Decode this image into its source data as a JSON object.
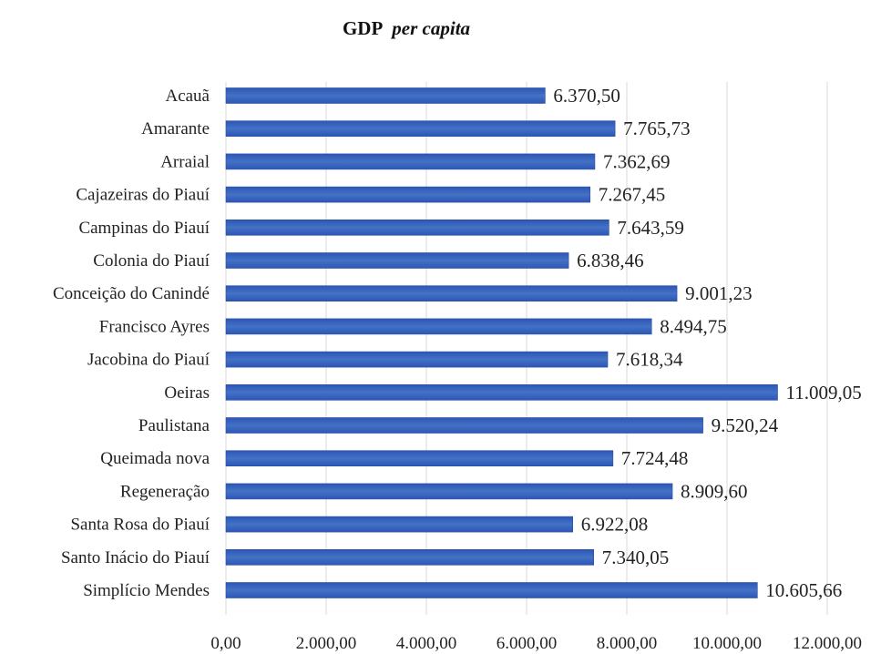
{
  "chart_data": {
    "type": "bar",
    "orientation": "horizontal",
    "title": "GDP",
    "title_italic": "per capita",
    "categories": [
      "Acauã",
      "Amarante",
      "Arraial",
      "Cajazeiras do Piauí",
      "Campinas do Piauí",
      "Colonia do Piauí",
      "Conceição do Canindé",
      "Francisco Ayres",
      "Jacobina do Piauí",
      "Oeiras",
      "Paulistana",
      "Queimada nova",
      "Regeneração",
      "Santa Rosa do Piauí",
      "Santo Inácio do Piauí",
      "Simplício Mendes"
    ],
    "values": [
      6370.5,
      7765.73,
      7362.69,
      7267.45,
      7643.59,
      6838.46,
      9001.23,
      8494.75,
      7618.34,
      11009.05,
      9520.24,
      7724.48,
      8909.6,
      6922.08,
      7340.05,
      10605.66
    ],
    "value_labels": [
      "6.370,50",
      "7.765,73",
      "7.362,69",
      "7.267,45",
      "7.643,59",
      "6.838,46",
      "9.001,23",
      "8.494,75",
      "7.618,34",
      "11.009,05",
      "9.520,24",
      "7.724,48",
      "8.909,60",
      "6.922,08",
      "7.340,05",
      "10.605,66"
    ],
    "xlim": [
      0,
      12000
    ],
    "x_ticks": [
      0,
      2000,
      4000,
      6000,
      8000,
      10000,
      12000
    ],
    "x_tick_labels": [
      "0,00",
      "2.000,00",
      "4.000,00",
      "6.000,00",
      "8.000,00",
      "10.000,00",
      "12.000,00"
    ],
    "grid": true,
    "bar_color": "#4472C4"
  }
}
